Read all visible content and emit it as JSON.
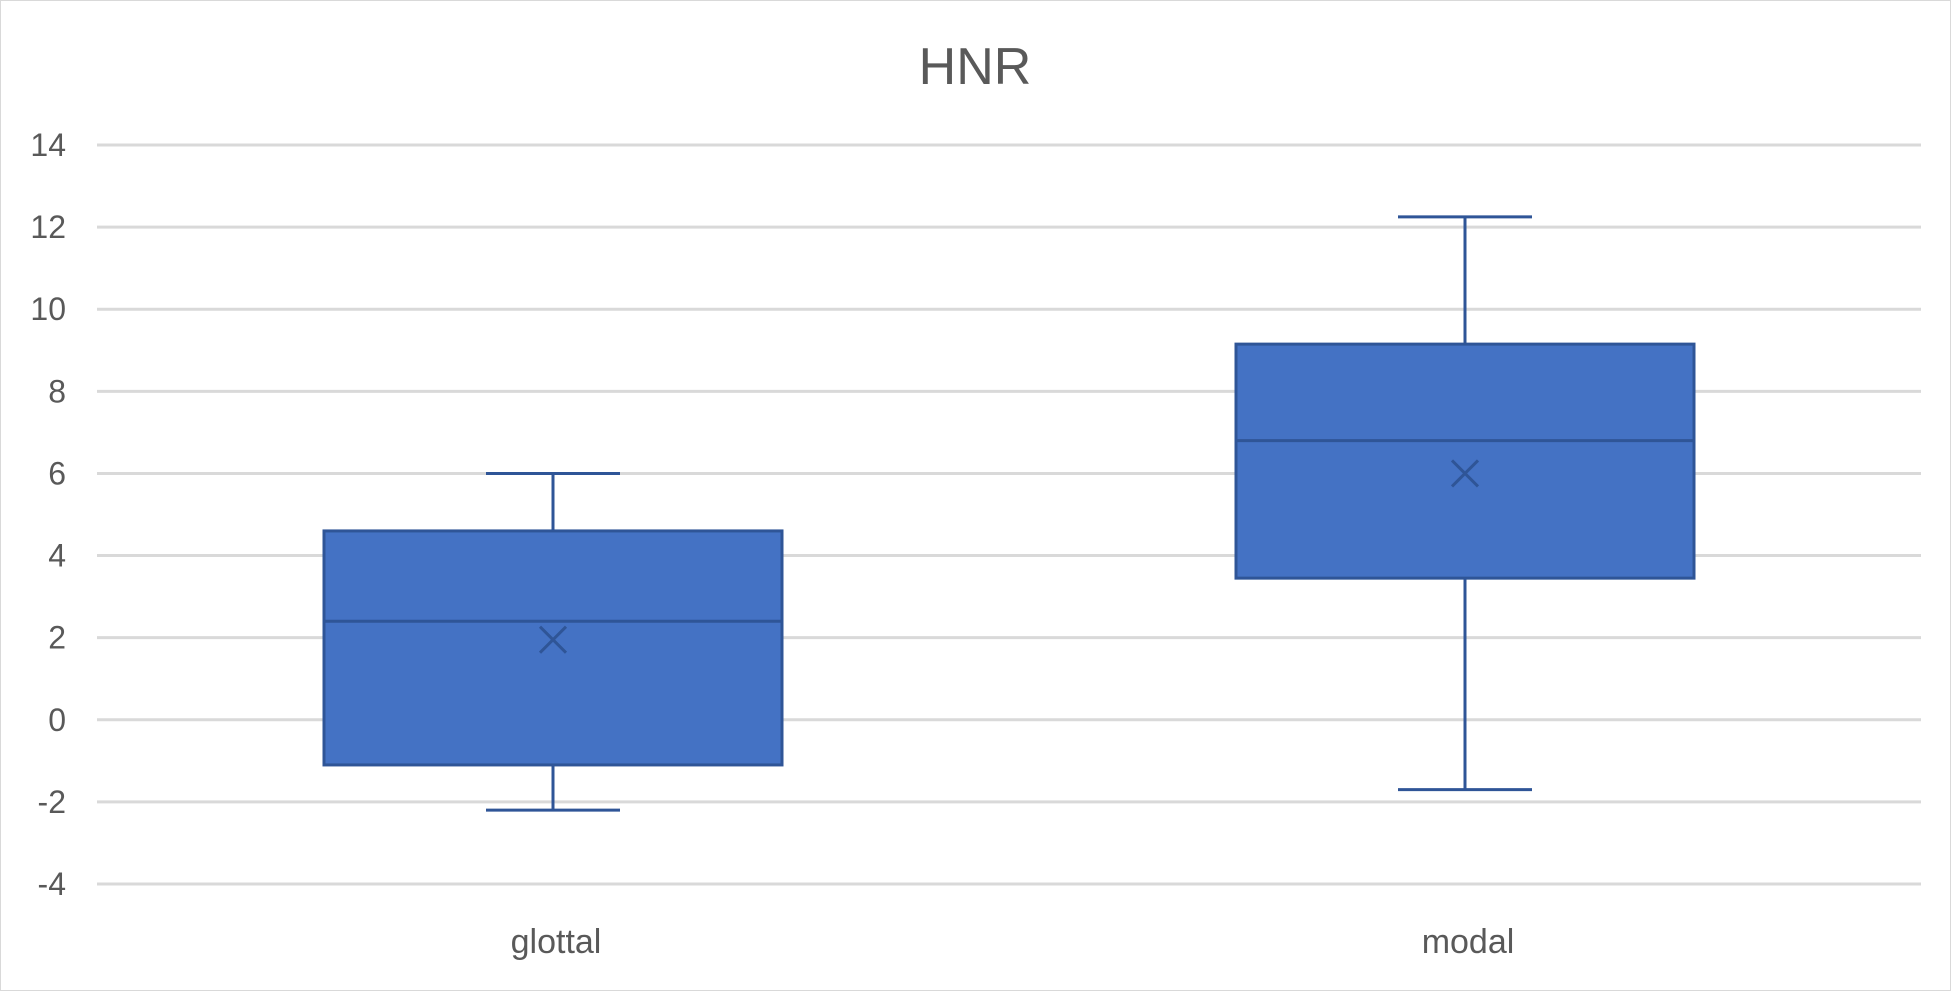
{
  "chart_data": {
    "type": "box",
    "title": "HNR",
    "xlabel": "",
    "ylabel": "",
    "ylim": [
      -4,
      14
    ],
    "y_ticks": [
      "14",
      "12",
      "10",
      "8",
      "6",
      "4",
      "2",
      "0",
      "-2",
      "-4"
    ],
    "y_tick_values": [
      14,
      12,
      10,
      8,
      6,
      4,
      2,
      0,
      -2,
      -4
    ],
    "grid": true,
    "legend": "none",
    "categories": [
      "glottal",
      "modal"
    ],
    "boxes": [
      {
        "category": "glottal",
        "min": -2.2,
        "q1": -1.1,
        "median": 2.4,
        "q3": 4.6,
        "max": 6.0,
        "mean": 1.95
      },
      {
        "category": "modal",
        "min": -1.7,
        "q1": 3.45,
        "median": 6.8,
        "q3": 9.15,
        "max": 12.25,
        "mean": 6.0
      }
    ],
    "colors": {
      "box_fill": "#4472c4",
      "box_stroke": "#2f5597",
      "grid": "#d9d9d9",
      "text": "#595959"
    }
  }
}
